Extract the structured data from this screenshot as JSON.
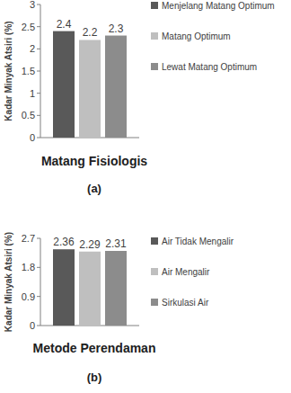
{
  "chart_data": [
    {
      "type": "bar",
      "x_label": "Matang Fisiologis",
      "y_label": "Kadar Minyak Atsiri (%)",
      "categories": [
        null
      ],
      "series": [
        {
          "name": "Menjelang Matang Optimum",
          "color": "#595959",
          "values": [
            2.4
          ]
        },
        {
          "name": "Matang Optimum",
          "color": "#bfbfbf",
          "values": [
            2.2
          ]
        },
        {
          "name": "Lewat Matang Optimum",
          "color": "#8c8c8c",
          "values": [
            2.3
          ]
        }
      ],
      "ylim": [
        0,
        3
      ],
      "yticks": [
        0,
        0.5,
        1,
        1.5,
        2,
        2.5,
        3
      ],
      "data_labels": true,
      "legend": "right",
      "annotations": [
        "(a)"
      ]
    },
    {
      "type": "bar",
      "x_label": "Metode Perendaman",
      "y_label": "Kadar Minyak Atsiri (%)",
      "categories": [
        null
      ],
      "series": [
        {
          "name": "Air Tidak Mengalir",
          "color": "#595959",
          "values": [
            2.36
          ]
        },
        {
          "name": "Air Mengalir",
          "color": "#bfbfbf",
          "values": [
            2.29
          ]
        },
        {
          "name": "Sirkulasi Air",
          "color": "#8c8c8c",
          "values": [
            2.31
          ]
        }
      ],
      "ylim": [
        0,
        2.7
      ],
      "yticks": [
        0,
        0.9,
        1.8,
        2.7
      ],
      "data_labels": true,
      "legend": "right",
      "annotations": [
        "(b)"
      ]
    }
  ]
}
